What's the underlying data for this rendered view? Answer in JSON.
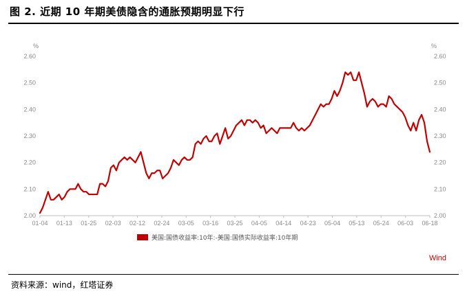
{
  "title": "图 2. 近期 10 年期美债隐含的通胀预期明显下行",
  "source": "资料来源：wind，红塔证券",
  "chart_data": {
    "type": "line",
    "left_unit": "%",
    "right_unit": "%",
    "ylim": [
      2.0,
      2.6
    ],
    "yticks": [
      "2.00",
      "2.10",
      "2.20",
      "2.30",
      "2.40",
      "2.50",
      "2.60"
    ],
    "yticks_right": [
      "2.00",
      "2.10",
      "2.20",
      "2.30",
      "2.40",
      "2.50",
      "2.60"
    ],
    "xticks": [
      "01-04",
      "01-13",
      "01-25",
      "02-03",
      "02-12",
      "02-24",
      "03-05",
      "03-16",
      "03-25",
      "04-05",
      "04-14",
      "04-23",
      "05-04",
      "05-13",
      "05-24",
      "06-03",
      "06-18"
    ],
    "grid": false,
    "legend_position": "bottom-center",
    "brand": "Wind",
    "series": [
      {
        "name": "美国:国债收益率:10年:-美国:国债实际收益率:10年期",
        "color": "#c00000",
        "values": [
          2.01,
          2.03,
          2.06,
          2.09,
          2.06,
          2.06,
          2.07,
          2.08,
          2.06,
          2.07,
          2.09,
          2.1,
          2.1,
          2.1,
          2.12,
          2.1,
          2.09,
          2.09,
          2.08,
          2.08,
          2.08,
          2.08,
          2.12,
          2.12,
          2.11,
          2.13,
          2.18,
          2.19,
          2.17,
          2.2,
          2.21,
          2.22,
          2.21,
          2.22,
          2.21,
          2.2,
          2.22,
          2.24,
          2.2,
          2.16,
          2.14,
          2.16,
          2.16,
          2.17,
          2.17,
          2.14,
          2.15,
          2.16,
          2.18,
          2.21,
          2.2,
          2.19,
          2.21,
          2.22,
          2.21,
          2.21,
          2.22,
          2.27,
          2.28,
          2.27,
          2.29,
          2.3,
          2.28,
          2.28,
          2.3,
          2.31,
          2.27,
          2.3,
          2.33,
          2.29,
          2.3,
          2.32,
          2.34,
          2.35,
          2.36,
          2.34,
          2.36,
          2.36,
          2.35,
          2.36,
          2.35,
          2.33,
          2.34,
          2.31,
          2.32,
          2.33,
          2.32,
          2.31,
          2.33,
          2.33,
          2.33,
          2.33,
          2.33,
          2.35,
          2.33,
          2.32,
          2.33,
          2.32,
          2.33,
          2.34,
          2.36,
          2.38,
          2.4,
          2.42,
          2.41,
          2.42,
          2.42,
          2.44,
          2.47,
          2.45,
          2.47,
          2.5,
          2.54,
          2.53,
          2.54,
          2.51,
          2.51,
          2.54,
          2.5,
          2.46,
          2.41,
          2.43,
          2.44,
          2.43,
          2.41,
          2.42,
          2.42,
          2.41,
          2.45,
          2.44,
          2.42,
          2.41,
          2.4,
          2.39,
          2.37,
          2.34,
          2.32,
          2.35,
          2.32,
          2.36,
          2.38,
          2.35,
          2.28,
          2.24
        ]
      }
    ]
  }
}
